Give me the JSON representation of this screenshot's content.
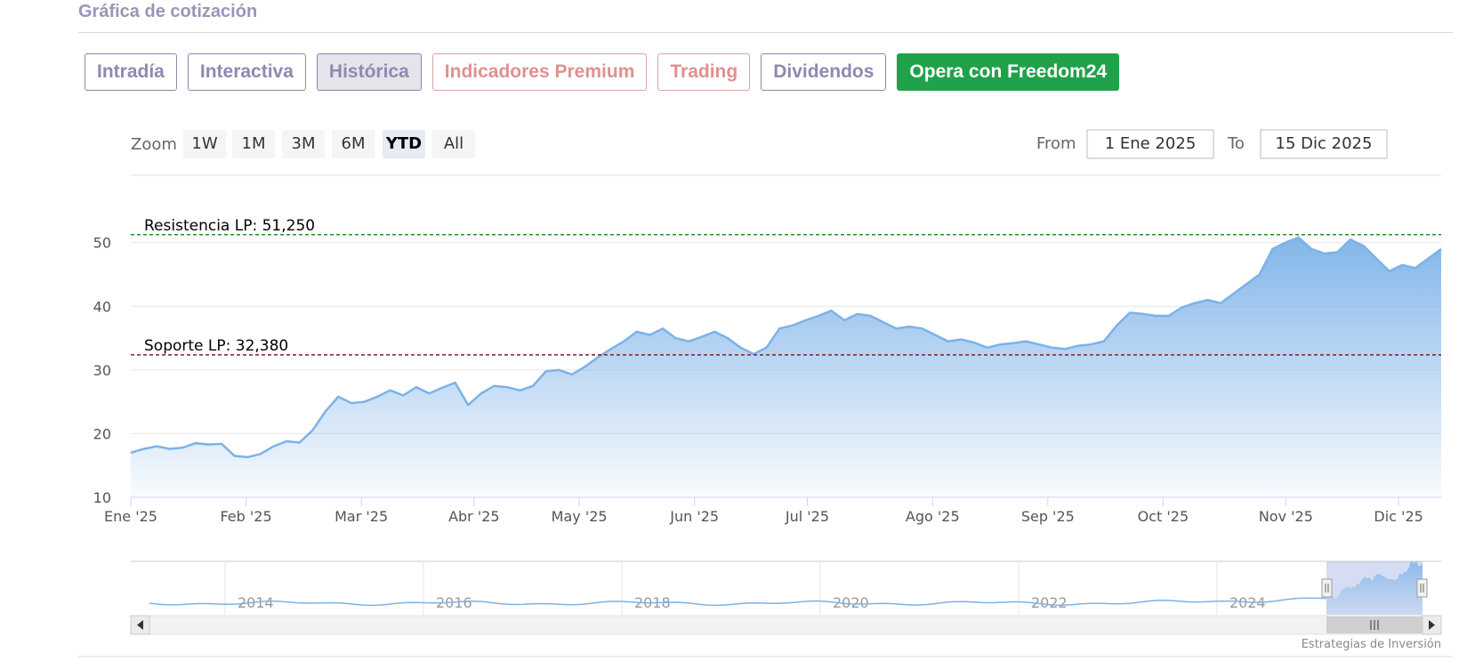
{
  "section": {
    "title": "Gráfica de cotización"
  },
  "tabs": [
    {
      "label": "Intradía",
      "style": "normal"
    },
    {
      "label": "Interactiva",
      "style": "normal"
    },
    {
      "label": "Histórica",
      "style": "active"
    },
    {
      "label": "Indicadores Premium",
      "style": "premium"
    },
    {
      "label": "Trading",
      "style": "premium"
    },
    {
      "label": "Dividendos",
      "style": "normal"
    },
    {
      "label": "Opera con Freedom24",
      "style": "cta"
    }
  ],
  "zoom": {
    "label": "Zoom",
    "buttons": [
      "1W",
      "1M",
      "3M",
      "6M",
      "YTD",
      "All"
    ],
    "active": "YTD"
  },
  "range": {
    "from_label": "From",
    "from_value": "1 Ene 2025",
    "to_label": "To",
    "to_value": "15 Dic 2025"
  },
  "colors": {
    "line": "#7cb2e8",
    "fill_top": "#7cb2e8",
    "resistance": "#2e8b2e",
    "support": "#8b1a2a",
    "accent_tab": "#8e89b3",
    "cta": "#1fa24a"
  },
  "chart_data": {
    "type": "area",
    "title": "",
    "xlabel": "",
    "ylabel": "",
    "ylim": [
      10,
      51.5
    ],
    "y_ticks": [
      10,
      20,
      30,
      40,
      50
    ],
    "x_ticks": [
      "Ene '25",
      "Feb '25",
      "Mar '25",
      "Abr '25",
      "May '25",
      "Jun '25",
      "Jul '25",
      "Ago '25",
      "Sep '25",
      "Oct '25",
      "Nov '25",
      "Dic '25"
    ],
    "grid": true,
    "x": [
      0,
      0.5,
      1,
      1.5,
      2,
      2.5,
      3,
      3.5,
      4,
      4.5,
      5,
      5.5,
      6,
      6.5,
      7,
      7.5,
      8,
      8.5,
      9,
      9.5,
      10,
      10.5,
      11,
      11.5,
      12,
      12.5,
      13,
      13.5,
      14,
      14.5,
      15,
      15.5,
      16,
      16.5,
      17,
      17.5,
      18,
      18.5,
      19,
      19.5,
      20,
      20.5,
      21,
      21.5,
      22,
      22.5,
      23,
      23.5,
      24,
      24.5,
      25,
      25.5,
      26,
      26.5,
      27,
      27.5,
      28,
      28.5,
      29,
      29.5,
      30,
      30.5,
      31,
      31.5,
      32,
      32.5,
      33,
      33.5,
      34,
      34.5,
      35,
      35.5,
      36,
      36.5,
      37,
      37.5,
      38,
      38.5,
      39,
      39.5,
      40,
      40.5,
      41,
      41.5,
      42,
      42.5,
      43,
      43.5,
      44,
      44.5,
      45,
      45.5,
      46,
      46.5,
      47,
      47.5,
      48,
      48.5,
      49,
      49.5,
      50,
      50.5
    ],
    "series": [
      {
        "values": [
          17,
          17.6,
          18,
          17.6,
          17.8,
          18.5,
          18.3,
          18.4,
          16.5,
          16.3,
          16.8,
          18,
          18.8,
          18.6,
          20.5,
          23.5,
          25.8,
          24.8,
          25,
          25.8,
          26.8,
          26,
          27.3,
          26.3,
          27.2,
          28,
          24.5,
          26.3,
          27.5,
          27.3,
          26.8,
          27.5,
          29.8,
          30,
          29.3,
          30.5,
          32,
          33.3,
          34.5,
          36,
          35.5,
          36.5,
          35,
          34.5,
          35.2,
          36,
          35,
          33.5,
          32.5,
          33.5,
          36.5,
          37,
          37.8,
          38.5,
          39.3,
          37.8,
          38.8,
          38.5,
          37.5,
          36.5,
          36.8,
          36.5,
          35.5,
          34.5,
          34.8,
          34.3,
          33.5,
          34,
          34.2,
          34.5,
          34,
          33.5,
          33.3,
          33.8,
          34,
          34.5,
          37,
          39,
          38.8,
          38.5,
          38.5,
          39.8,
          40.5,
          41,
          40.5,
          42,
          43.5,
          45,
          49,
          50,
          50.8,
          49,
          48.3,
          48.5,
          50.5,
          49.5,
          47.5,
          45.5,
          46.5,
          46,
          47.5,
          49
        ]
      }
    ],
    "annotations": [
      {
        "label": "Resistencia LP: 51,250",
        "y": 51.25,
        "kind": "resistance"
      },
      {
        "label": "Soporte LP: 32,380",
        "y": 32.38,
        "kind": "support"
      }
    ],
    "navigator": {
      "year_labels": [
        "2014",
        "2016",
        "2018",
        "2020",
        "2022",
        "2024"
      ],
      "credit": "Estrategias de Inversión"
    }
  }
}
